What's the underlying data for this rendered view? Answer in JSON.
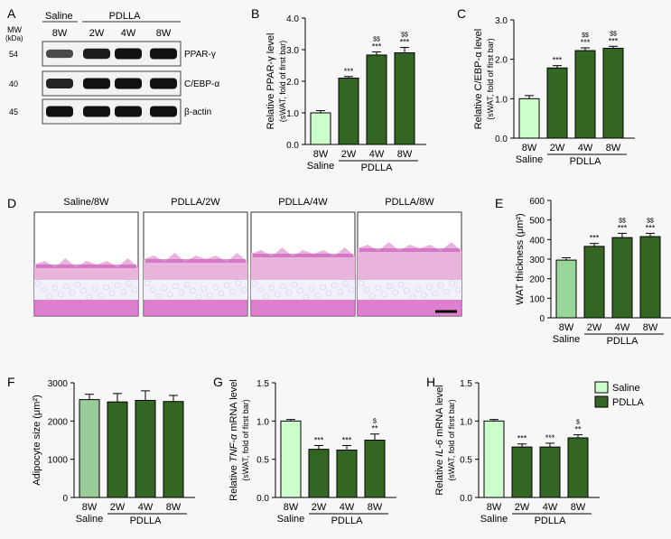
{
  "colors": {
    "saline_bar": "#ccffcc",
    "saline_bar_e": "#99d699",
    "saline_bar_f": "#99cc99",
    "pdlla_bar": "#336622",
    "tissue_pink": "#e8b4dc",
    "tissue_fat": "#f1f1fb",
    "tissue_muscle": "#d868c8",
    "background": "#f7f7f7"
  },
  "panel_labels": [
    "A",
    "B",
    "C",
    "D",
    "E",
    "F",
    "G",
    "H"
  ],
  "blot": {
    "mw_label": "MW",
    "kda_label": "(kDa)",
    "group_saline": "Saline",
    "group_pdlla": "PDLLA",
    "lanes": [
      "8W",
      "2W",
      "4W",
      "8W"
    ],
    "rows": [
      {
        "mw": "54",
        "protein": "PPAR-γ",
        "intensity": [
          0.55,
          0.9,
          1.0,
          1.0
        ]
      },
      {
        "mw": "40",
        "protein": "C/EBP-α",
        "intensity": [
          0.85,
          1.0,
          1.0,
          1.0
        ]
      },
      {
        "mw": "45",
        "protein": "β-actin",
        "intensity": [
          1.0,
          1.0,
          1.0,
          1.0
        ]
      }
    ]
  },
  "histology": {
    "titles": [
      "Saline/8W",
      "PDLLA/2W",
      "PDLLA/4W",
      "PDLLA/8W"
    ],
    "scale_bar": true
  },
  "group_labels": {
    "saline": "Saline",
    "pdlla": "PDLLA"
  },
  "legend": [
    {
      "label": "Saline",
      "color": "#ccffcc"
    },
    {
      "label": "PDLLA",
      "color": "#336622"
    }
  ],
  "chart_data": [
    {
      "panel": "B",
      "type": "bar",
      "ylabel_line1": "Relative PPAR-γ level",
      "ylabel_line2": "(sWAT, fold of first bar)",
      "categories": [
        "8W",
        "2W",
        "4W",
        "8W"
      ],
      "groups": [
        "Saline",
        "PDLLA",
        "PDLLA",
        "PDLLA"
      ],
      "values": [
        1.0,
        2.1,
        2.83,
        2.9
      ],
      "errors": [
        0.07,
        0.05,
        0.1,
        0.17
      ],
      "ylim": [
        0,
        4.0
      ],
      "yticks": [
        "0.0",
        "1.0",
        "2.0",
        "3.0",
        "4.0"
      ],
      "annotations": [
        [
          "",
          ""
        ],
        [
          "",
          "***"
        ],
        [
          "$$",
          "***"
        ],
        [
          "$$",
          "***"
        ]
      ]
    },
    {
      "panel": "C",
      "type": "bar",
      "ylabel_line1": "Relative C/EBP-α level",
      "ylabel_line2": "(sWAT, fold of first bar)",
      "categories": [
        "8W",
        "2W",
        "4W",
        "8W"
      ],
      "groups": [
        "Saline",
        "PDLLA",
        "PDLLA",
        "PDLLA"
      ],
      "values": [
        1.0,
        1.78,
        2.22,
        2.28
      ],
      "errors": [
        0.08,
        0.06,
        0.07,
        0.05
      ],
      "ylim": [
        0,
        3.0
      ],
      "yticks": [
        "0.0",
        "1.0",
        "2.0",
        "3.0"
      ],
      "annotations": [
        [
          "",
          ""
        ],
        [
          "",
          "***"
        ],
        [
          "$$",
          "***"
        ],
        [
          "$$",
          "***"
        ]
      ]
    },
    {
      "panel": "E",
      "type": "bar",
      "ylabel_line1": "WAT thickness (μm²)",
      "ylabel_line2": "",
      "categories": [
        "8W",
        "2W",
        "4W",
        "8W"
      ],
      "groups": [
        "Saline",
        "PDLLA",
        "PDLLA",
        "PDLLA"
      ],
      "values": [
        295,
        365,
        410,
        415
      ],
      "errors": [
        12,
        15,
        22,
        17
      ],
      "ylim": [
        0,
        600
      ],
      "yticks": [
        "0",
        "100",
        "200",
        "300",
        "400",
        "500",
        "600"
      ],
      "annotations": [
        [
          "",
          ""
        ],
        [
          "",
          "***"
        ],
        [
          "$$",
          "***"
        ],
        [
          "$$",
          "***"
        ]
      ]
    },
    {
      "panel": "F",
      "type": "bar",
      "ylabel_line1": "Adipocyte size (μm²)",
      "ylabel_line2": "",
      "categories": [
        "8W",
        "2W",
        "4W",
        "8W"
      ],
      "groups": [
        "Saline",
        "PDLLA",
        "PDLLA",
        "PDLLA"
      ],
      "values": [
        2560,
        2500,
        2540,
        2510
      ],
      "errors": [
        140,
        220,
        250,
        160
      ],
      "ylim": [
        0,
        3000
      ],
      "yticks": [
        "0",
        "1000",
        "2000",
        "3000"
      ],
      "annotations": [
        [
          "",
          ""
        ],
        [
          "",
          ""
        ],
        [
          "",
          ""
        ],
        [
          "",
          ""
        ]
      ]
    },
    {
      "panel": "G",
      "type": "bar",
      "ylabel_line1": "Relative TNF-α mRNA level",
      "ylabel_line2": "(sWAT, fold of first bar)",
      "italic_gene": "TNF-α",
      "categories": [
        "8W",
        "2W",
        "4W",
        "8W"
      ],
      "groups": [
        "Saline",
        "PDLLA",
        "PDLLA",
        "PDLLA"
      ],
      "values": [
        1.0,
        0.63,
        0.62,
        0.75
      ],
      "errors": [
        0.02,
        0.05,
        0.06,
        0.08
      ],
      "ylim": [
        0,
        1.5
      ],
      "yticks": [
        "0.0",
        "0.5",
        "1.0",
        "1.5"
      ],
      "annotations": [
        [
          "",
          ""
        ],
        [
          "",
          "***"
        ],
        [
          "",
          "***"
        ],
        [
          "$",
          "**"
        ]
      ]
    },
    {
      "panel": "H",
      "type": "bar",
      "ylabel_line1": "Relative IL-6 mRNA level",
      "ylabel_line2": "(sWAT, fold of first bar)",
      "italic_gene": "IL-6",
      "categories": [
        "8W",
        "2W",
        "4W",
        "8W"
      ],
      "groups": [
        "Saline",
        "PDLLA",
        "PDLLA",
        "PDLLA"
      ],
      "values": [
        1.0,
        0.66,
        0.66,
        0.78
      ],
      "errors": [
        0.02,
        0.04,
        0.05,
        0.04
      ],
      "ylim": [
        0,
        1.5
      ],
      "yticks": [
        "0.0",
        "0.5",
        "1.0",
        "1.5"
      ],
      "annotations": [
        [
          "",
          ""
        ],
        [
          "",
          "***"
        ],
        [
          "",
          "***"
        ],
        [
          "$",
          "**"
        ]
      ]
    }
  ]
}
